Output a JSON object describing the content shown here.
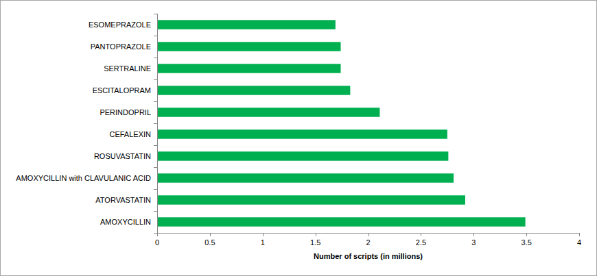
{
  "chart_data": {
    "type": "bar",
    "orientation": "horizontal",
    "x_label": "Number of scripts (in millions)",
    "categories": [
      "ESOMEPRAZOLE",
      "PANTOPRAZOLE",
      "SERTRALINE",
      "ESCITALOPRAM",
      "PERINDOPRIL",
      "CEFALEXIN",
      "ROSUVASTATIN",
      "AMOXYCILLIN with CLAVULANIC ACID",
      "ATORVASTATIN",
      "AMOXYCILLIN"
    ],
    "values": [
      1.69,
      1.74,
      1.74,
      1.83,
      2.11,
      2.75,
      2.76,
      2.81,
      2.92,
      3.49
    ],
    "color": "#00b050",
    "xlim": [
      0,
      4
    ],
    "xticks": [
      0,
      0.5,
      1,
      1.5,
      2,
      2.5,
      3,
      3.5,
      4
    ],
    "grid": false
  }
}
